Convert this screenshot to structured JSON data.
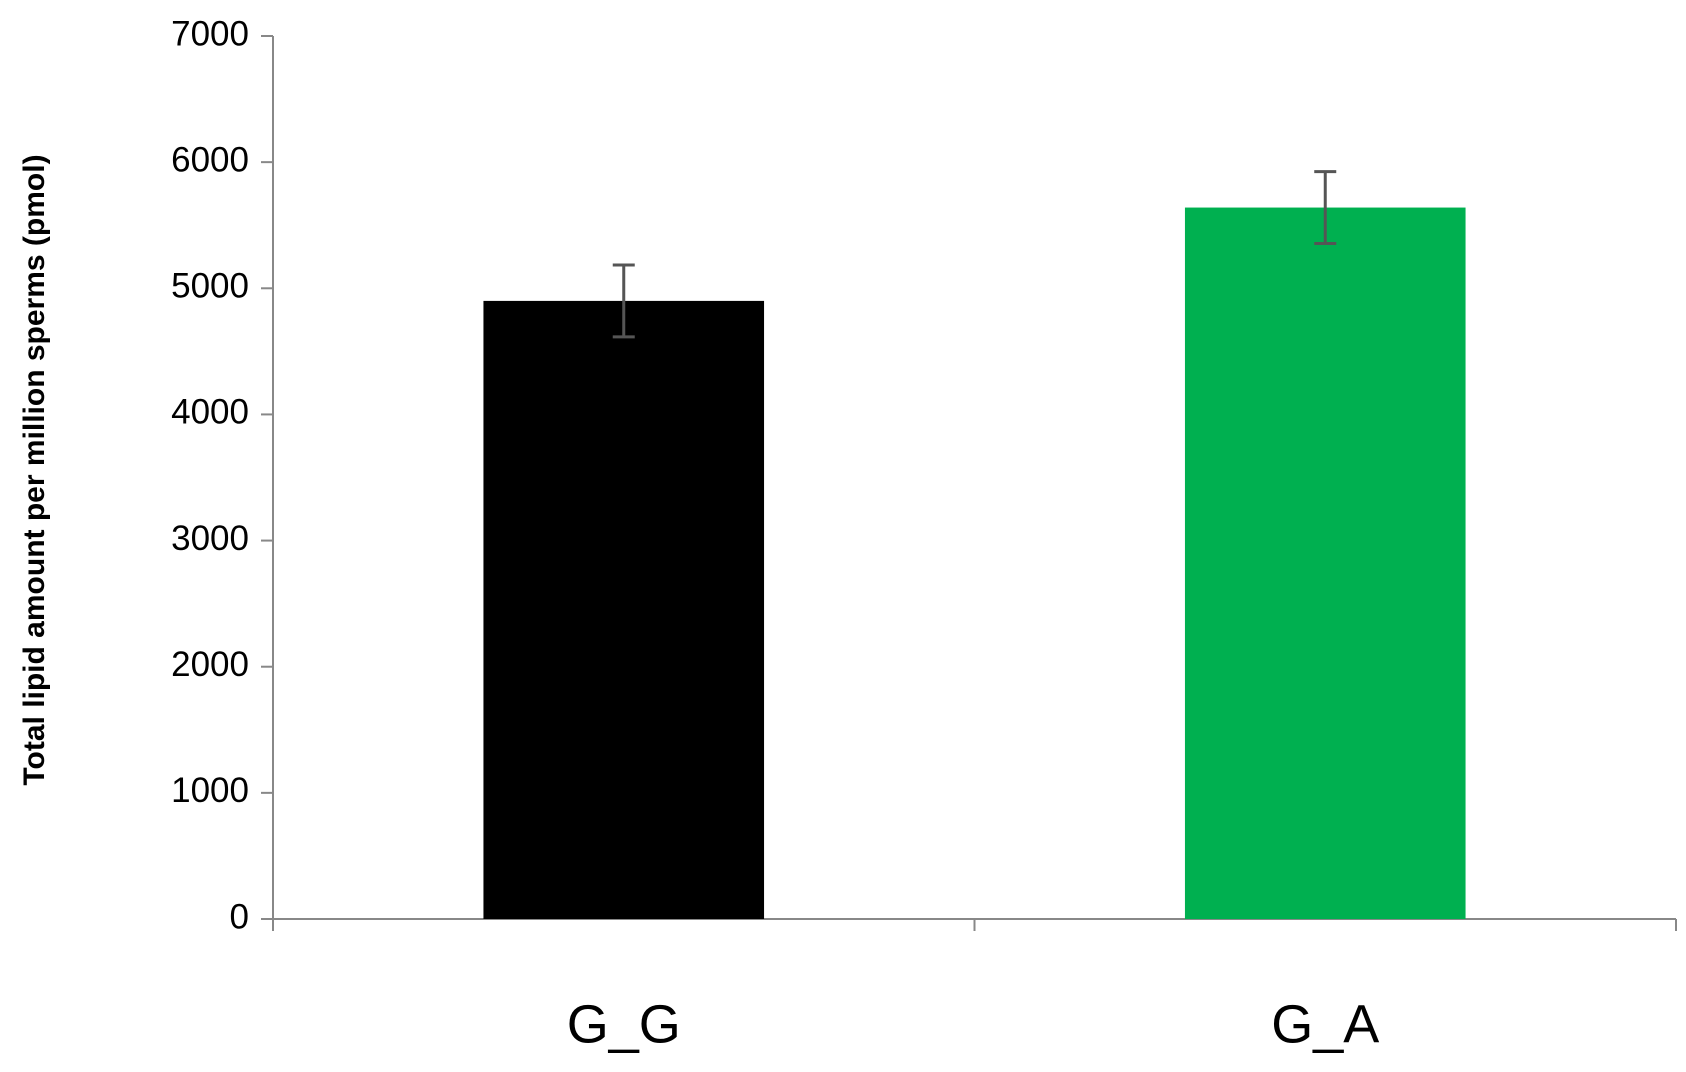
{
  "chart_data": {
    "type": "bar",
    "y_label": "Total lipid amount per million sperms  (pmol)",
    "categories": [
      "G_G",
      "G_A"
    ],
    "values": [
      4900,
      5640
    ],
    "errors": [
      285,
      285
    ],
    "colors": [
      "#000000",
      "#00b050"
    ],
    "ylim": [
      0,
      7000
    ],
    "yticks": [
      0,
      1000,
      2000,
      3000,
      4000,
      5000,
      6000,
      7000
    ],
    "grid": false
  }
}
